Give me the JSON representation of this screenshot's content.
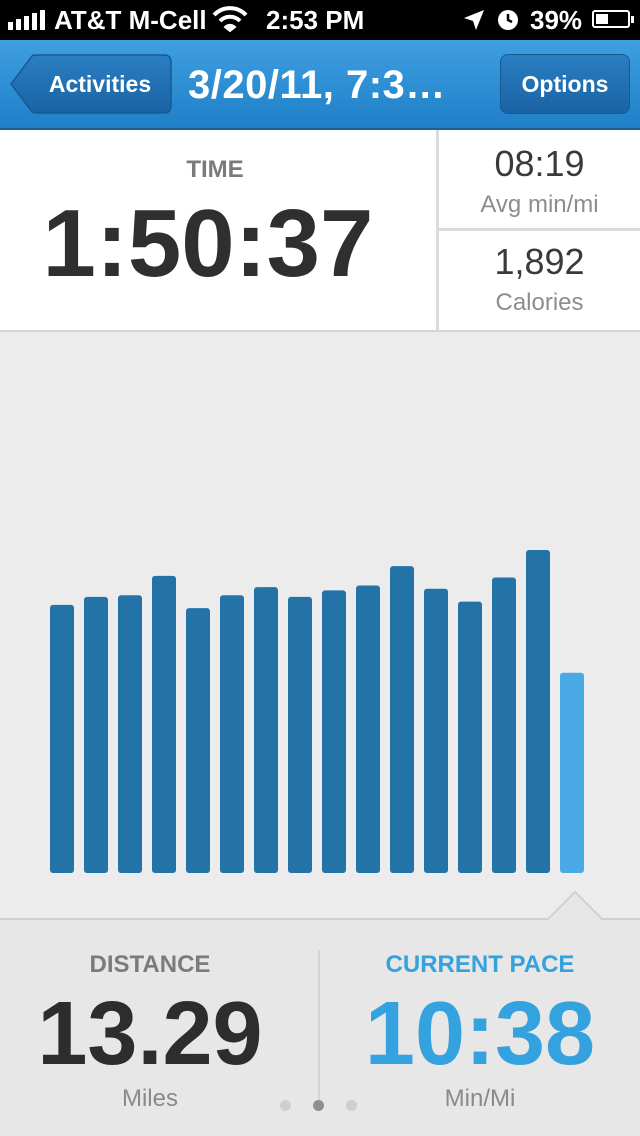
{
  "status_bar": {
    "carrier": "AT&T M-Cell",
    "time": "2:53 PM",
    "battery": "39%",
    "battery_level": 0.39
  },
  "nav": {
    "back_label": "Activities",
    "title": "3/20/11, 7:3…",
    "options_label": "Options"
  },
  "stats": {
    "time_label": "TIME",
    "time_value": "1:50:37",
    "avg_pace_value": "08:19",
    "avg_pace_label": "Avg min/mi",
    "calories_value": "1,892",
    "calories_label": "Calories"
  },
  "chart_data": {
    "type": "bar",
    "values": [
      8.3,
      8.55,
      8.6,
      9.2,
      8.2,
      8.6,
      8.85,
      8.55,
      8.75,
      8.9,
      9.5,
      8.8,
      8.4,
      9.15,
      10.0,
      6.2
    ],
    "highlight_index": 15,
    "bar_color": "#2373a9",
    "highlight_color": "#4aaae6",
    "ylim": [
      0,
      10.0
    ]
  },
  "bottom": {
    "distance_label": "DISTANCE",
    "distance_value": "13.29",
    "distance_unit": "Miles",
    "current_label": "CURRENT PACE",
    "current_value": "10:38",
    "current_unit": "Min/Mi",
    "page_count": 3,
    "active_page": 2
  },
  "colors": {
    "accent": "#34a2de",
    "nav_blue": "#2a8ad4"
  }
}
